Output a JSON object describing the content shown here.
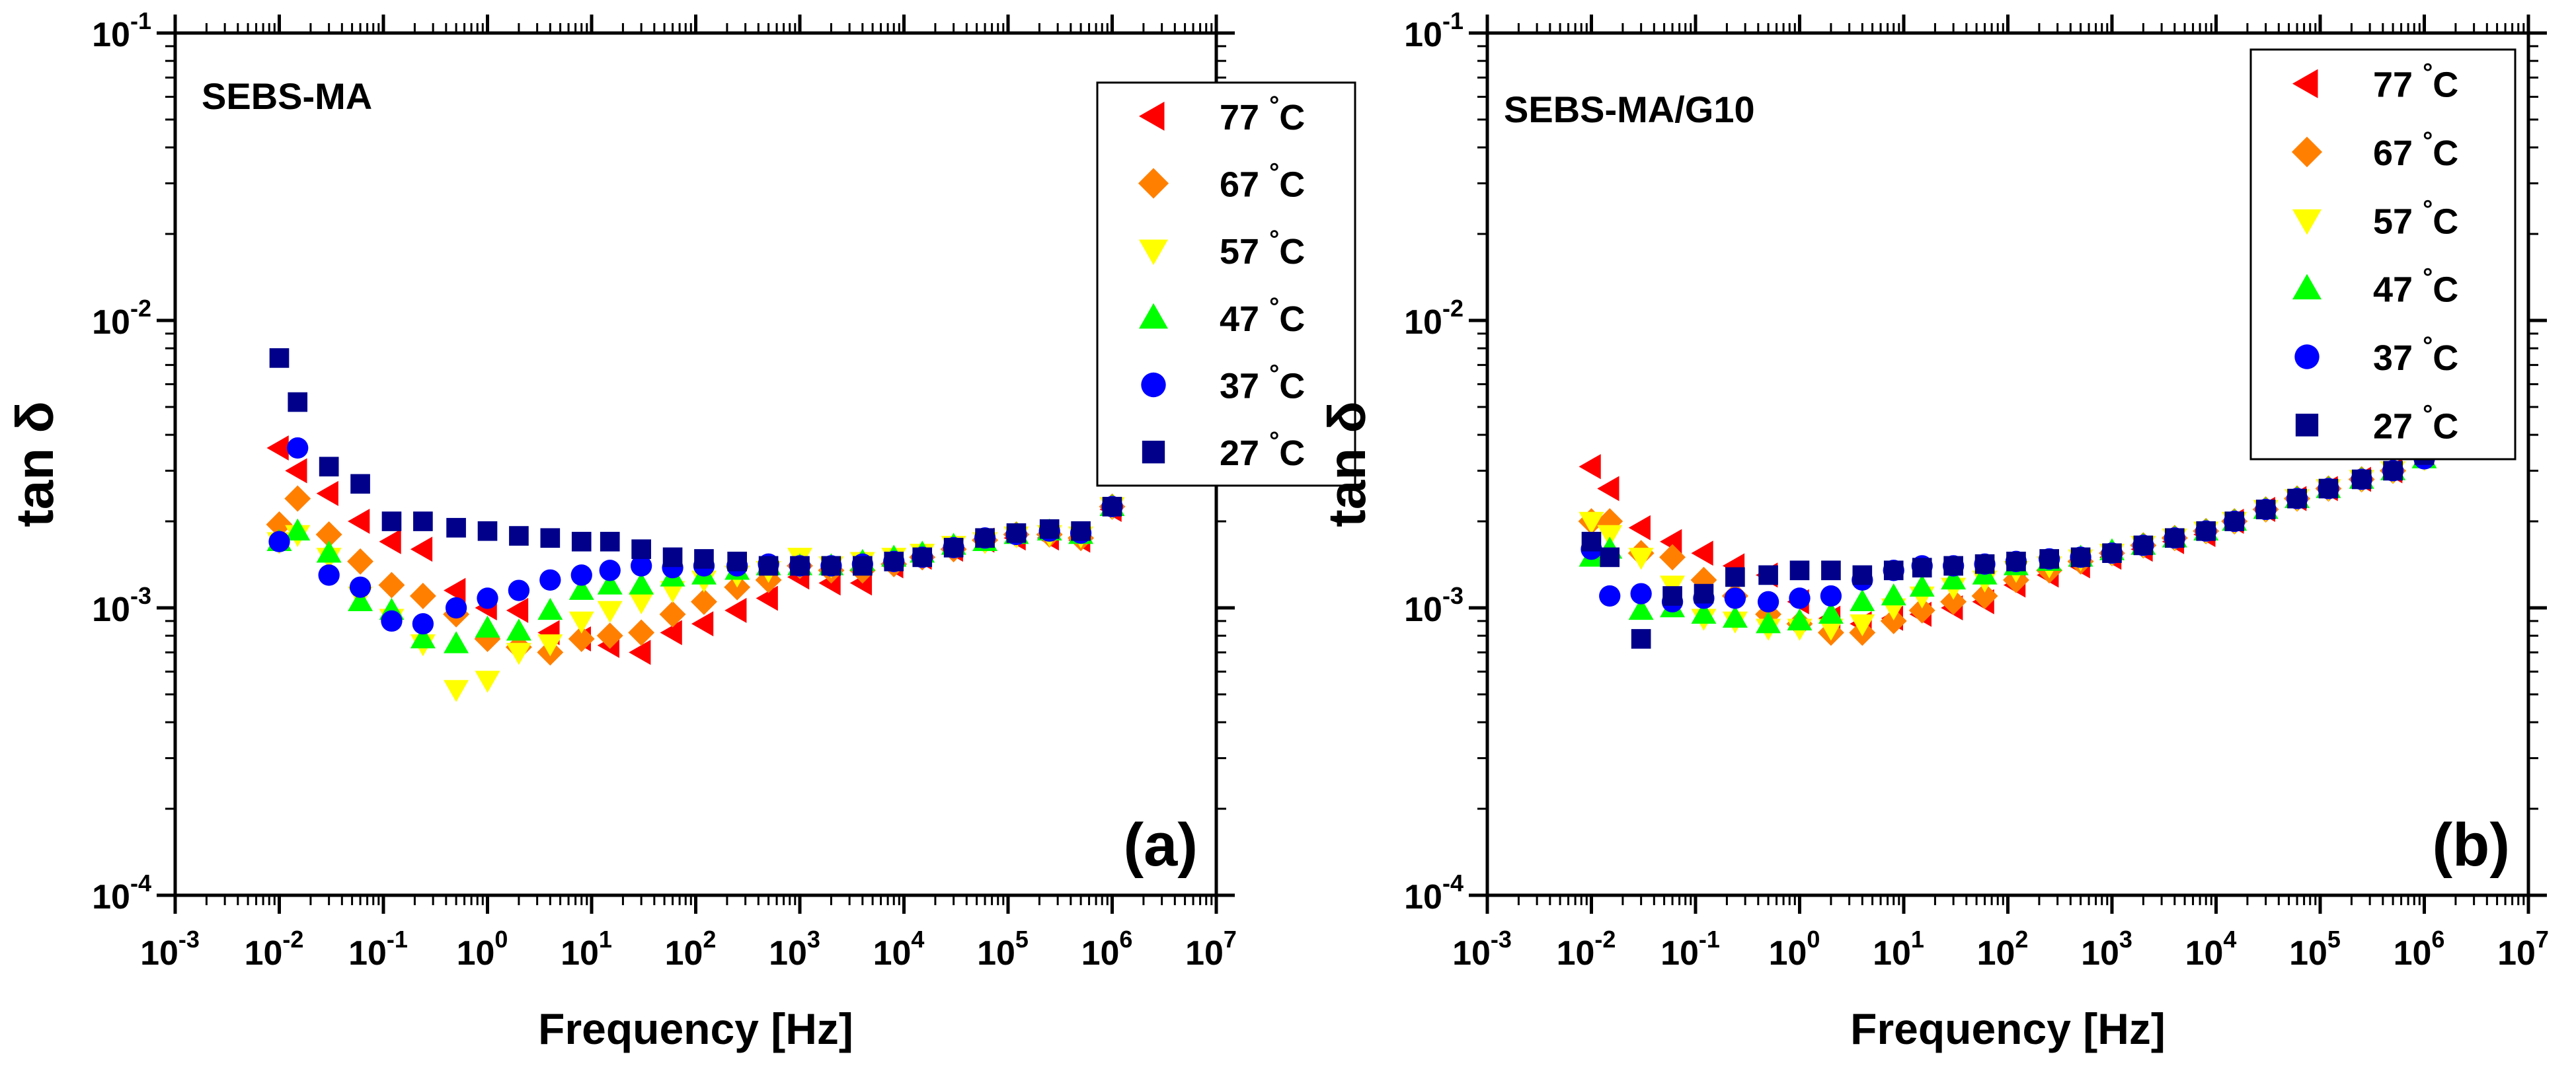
{
  "chart_data": [
    {
      "type": "scatter",
      "panel_label": "(a)",
      "sample_label": "SEBS-MA",
      "xlabel": "Frequency [Hz]",
      "ylabel": "tan δ",
      "xscale": "log",
      "yscale": "log",
      "xlim": [
        0.001,
        10000000
      ],
      "ylim": [
        0.0001,
        0.1
      ],
      "x_ticks": [
        {
          "base": "10",
          "exp": "-3"
        },
        {
          "base": "10",
          "exp": "-2"
        },
        {
          "base": "10",
          "exp": "-1"
        },
        {
          "base": "10",
          "exp": "0"
        },
        {
          "base": "10",
          "exp": "1"
        },
        {
          "base": "10",
          "exp": "2"
        },
        {
          "base": "10",
          "exp": "3"
        },
        {
          "base": "10",
          "exp": "4"
        },
        {
          "base": "10",
          "exp": "5"
        },
        {
          "base": "10",
          "exp": "6"
        },
        {
          "base": "10",
          "exp": "7"
        }
      ],
      "y_ticks": [
        {
          "base": "10",
          "exp": "-4"
        },
        {
          "base": "10",
          "exp": "-3"
        },
        {
          "base": "10",
          "exp": "-2"
        },
        {
          "base": "10",
          "exp": "-1"
        }
      ],
      "legend_position": "top-right",
      "grid": false,
      "x": [
        0.01,
        0.015,
        0.03,
        0.06,
        0.12,
        0.24,
        0.5,
        1,
        2,
        4,
        8,
        15,
        30,
        60,
        120,
        250,
        500,
        1000,
        2000,
        4000,
        8000,
        15000,
        30000,
        60000,
        120000,
        250000,
        500000,
        1000000
      ],
      "series": [
        {
          "name": "77 °C",
          "marker": "triangle-left",
          "color": "#ff0000",
          "values": [
            0.0036,
            0.003,
            0.0025,
            0.002,
            0.0017,
            0.0016,
            0.00115,
            0.001,
            0.00098,
            0.00082,
            0.00078,
            0.00074,
            0.0007,
            0.00082,
            0.00088,
            0.00098,
            0.00108,
            0.00128,
            0.00122,
            0.00122,
            0.0014,
            0.0015,
            0.0016,
            0.00172,
            0.00175,
            0.00175,
            0.00172,
            0.0022
          ]
        },
        {
          "name": "67 °C",
          "marker": "diamond",
          "color": "#ff8000",
          "values": [
            0.00195,
            0.0024,
            0.0018,
            0.00145,
            0.0012,
            0.0011,
            0.00095,
            0.00078,
            0.00073,
            0.0007,
            0.00078,
            0.0008,
            0.00082,
            0.00095,
            0.00105,
            0.00118,
            0.00125,
            0.0014,
            0.00135,
            0.00135,
            0.00142,
            0.0015,
            0.0016,
            0.00172,
            0.0018,
            0.0018,
            0.00175,
            0.00225
          ]
        },
        {
          "name": "57 °C",
          "marker": "triangle-down",
          "color": "#ffff00",
          "values": [
            0.0017,
            0.0018,
            0.0015,
            0.0011,
            0.00092,
            0.00075,
            0.00052,
            0.00056,
            0.0007,
            0.00075,
            0.0009,
            0.00098,
            0.00105,
            0.00115,
            0.00125,
            0.0013,
            0.00135,
            0.0015,
            0.0014,
            0.00145,
            0.0015,
            0.00155,
            0.00165,
            0.0017,
            0.00178,
            0.0018,
            0.00178,
            0.00225
          ]
        },
        {
          "name": "47 °C",
          "marker": "triangle-up",
          "color": "#00ff00",
          "values": [
            0.0017,
            0.00185,
            0.00155,
            0.00105,
            0.00098,
            0.00078,
            0.00075,
            0.00085,
            0.00083,
            0.00098,
            0.00115,
            0.0012,
            0.0012,
            0.00128,
            0.0013,
            0.00135,
            0.0014,
            0.0014,
            0.0014,
            0.00145,
            0.0015,
            0.00155,
            0.00165,
            0.0017,
            0.0018,
            0.00185,
            0.0018,
            0.00225
          ]
        },
        {
          "name": "37 °C",
          "marker": "circle",
          "color": "#0000ff",
          "values": [
            0.0017,
            0.0036,
            0.0013,
            0.00118,
            0.0009,
            0.00088,
            0.001,
            0.00108,
            0.00115,
            0.00125,
            0.0013,
            0.00135,
            0.0014,
            0.00138,
            0.0014,
            0.0014,
            0.00142,
            0.0014,
            0.0014,
            0.00142,
            0.00145,
            0.0015,
            0.00162,
            0.00175,
            0.0018,
            0.00185,
            0.00182,
            0.00225
          ]
        },
        {
          "name": "27 °C",
          "marker": "square",
          "color": "#00008b",
          "values": [
            0.0074,
            0.0052,
            0.0031,
            0.0027,
            0.002,
            0.002,
            0.0019,
            0.00185,
            0.00178,
            0.00175,
            0.0017,
            0.0017,
            0.0016,
            0.0015,
            0.00148,
            0.00145,
            0.0014,
            0.0014,
            0.0014,
            0.0014,
            0.00145,
            0.0015,
            0.00162,
            0.00175,
            0.00182,
            0.00188,
            0.00185,
            0.00225
          ]
        }
      ]
    },
    {
      "type": "scatter",
      "panel_label": "(b)",
      "sample_label": "SEBS-MA/G10",
      "xlabel": "Frequency [Hz]",
      "ylabel": "tan δ",
      "xscale": "log",
      "yscale": "log",
      "xlim": [
        0.001,
        10000000
      ],
      "ylim": [
        0.0001,
        0.1
      ],
      "x_ticks": [
        {
          "base": "10",
          "exp": "-3"
        },
        {
          "base": "10",
          "exp": "-2"
        },
        {
          "base": "10",
          "exp": "-1"
        },
        {
          "base": "10",
          "exp": "0"
        },
        {
          "base": "10",
          "exp": "1"
        },
        {
          "base": "10",
          "exp": "2"
        },
        {
          "base": "10",
          "exp": "3"
        },
        {
          "base": "10",
          "exp": "4"
        },
        {
          "base": "10",
          "exp": "5"
        },
        {
          "base": "10",
          "exp": "6"
        },
        {
          "base": "10",
          "exp": "7"
        }
      ],
      "y_ticks": [
        {
          "base": "10",
          "exp": "-4"
        },
        {
          "base": "10",
          "exp": "-3"
        },
        {
          "base": "10",
          "exp": "-2"
        },
        {
          "base": "10",
          "exp": "-1"
        }
      ],
      "legend_position": "top-right",
      "grid": false,
      "x": [
        0.01,
        0.015,
        0.03,
        0.06,
        0.12,
        0.24,
        0.5,
        1,
        2,
        4,
        8,
        15,
        30,
        60,
        120,
        250,
        500,
        1000,
        2000,
        4000,
        8000,
        15000,
        30000,
        60000,
        120000,
        250000,
        500000,
        1000000
      ],
      "series": [
        {
          "name": "77 °C",
          "marker": "triangle-left",
          "color": "#ff0000",
          "values": [
            0.0031,
            0.0026,
            0.0019,
            0.0017,
            0.00155,
            0.0014,
            0.0013,
            0.00105,
            0.00092,
            0.00088,
            0.00092,
            0.00095,
            0.001,
            0.00105,
            0.0012,
            0.0013,
            0.0014,
            0.0015,
            0.0016,
            0.0017,
            0.0018,
            0.002,
            0.0022,
            0.0024,
            0.0026,
            0.0028,
            0.003,
            0.0036
          ]
        },
        {
          "name": "67 °C",
          "marker": "diamond",
          "color": "#ff8000",
          "values": [
            0.002,
            0.002,
            0.00155,
            0.0015,
            0.00125,
            0.0011,
            0.00095,
            0.00088,
            0.00082,
            0.00082,
            0.0009,
            0.00098,
            0.00105,
            0.0011,
            0.00125,
            0.00135,
            0.00145,
            0.00155,
            0.00165,
            0.00175,
            0.00185,
            0.002,
            0.0022,
            0.0024,
            0.0026,
            0.0028,
            0.003,
            0.0034
          ]
        },
        {
          "name": "57 °C",
          "marker": "triangle-down",
          "color": "#ffff00",
          "values": [
            0.002,
            0.0018,
            0.0015,
            0.0012,
            0.00092,
            0.0009,
            0.00085,
            0.00085,
            0.00085,
            0.00088,
            0.001,
            0.0011,
            0.00118,
            0.00125,
            0.00135,
            0.0014,
            0.00148,
            0.00155,
            0.00165,
            0.00175,
            0.00185,
            0.002,
            0.0022,
            0.0024,
            0.0026,
            0.0028,
            0.003,
            0.0033
          ]
        },
        {
          "name": "47 °C",
          "marker": "triangle-up",
          "color": "#00ff00",
          "values": [
            0.0015,
            0.0016,
            0.00098,
            0.001,
            0.00095,
            0.00092,
            0.00088,
            0.0009,
            0.00095,
            0.00105,
            0.0011,
            0.00118,
            0.00125,
            0.0013,
            0.0014,
            0.00145,
            0.0015,
            0.00158,
            0.00165,
            0.00175,
            0.00185,
            0.002,
            0.0022,
            0.0024,
            0.0026,
            0.0028,
            0.003,
            0.0033
          ]
        },
        {
          "name": "37 °C",
          "marker": "circle",
          "color": "#0000ff",
          "values": [
            0.0016,
            0.0011,
            0.00112,
            0.00105,
            0.00108,
            0.00108,
            0.00105,
            0.00108,
            0.0011,
            0.00125,
            0.00135,
            0.0014,
            0.0014,
            0.00142,
            0.00145,
            0.00148,
            0.0015,
            0.00155,
            0.00165,
            0.00175,
            0.00185,
            0.002,
            0.0022,
            0.0024,
            0.0026,
            0.0028,
            0.003,
            0.0033
          ]
        },
        {
          "name": "27 °C",
          "marker": "square",
          "color": "#00008b",
          "values": [
            0.0017,
            0.0015,
            0.00078,
            0.0011,
            0.00112,
            0.00128,
            0.0013,
            0.00135,
            0.00135,
            0.0013,
            0.00135,
            0.00138,
            0.0014,
            0.00142,
            0.00145,
            0.00148,
            0.0015,
            0.00155,
            0.00165,
            0.00175,
            0.00185,
            0.002,
            0.0022,
            0.0024,
            0.0026,
            0.0028,
            0.003,
            0.0034
          ]
        }
      ]
    }
  ]
}
